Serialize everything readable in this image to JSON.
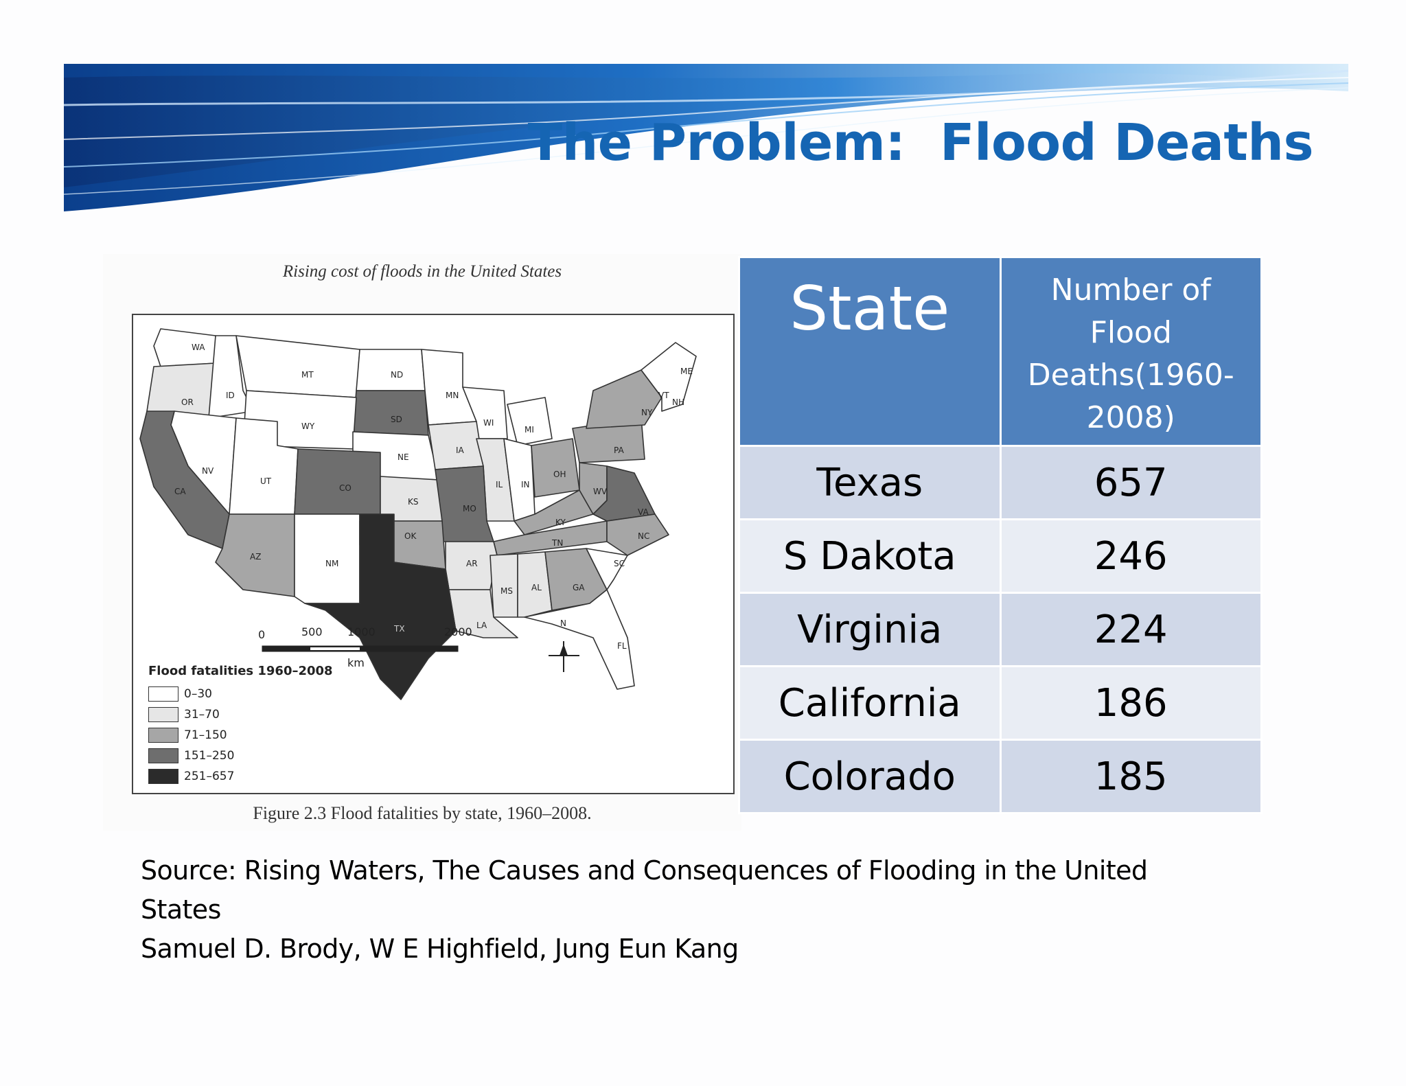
{
  "slide": {
    "title": "The Problem:  Flood Deaths"
  },
  "map": {
    "caption_top": "Rising cost of floods in the United States",
    "caption_bottom": "Figure 2.3 Flood fatalities by state, 1960–2008.",
    "legend_title": "Flood fatalities 1960–2008",
    "legend": [
      {
        "label": "0–30",
        "color": "#ffffff"
      },
      {
        "label": "31–70",
        "color": "#e6e6e6"
      },
      {
        "label": "71–150",
        "color": "#a6a6a6"
      },
      {
        "label": "151–250",
        "color": "#6e6e6e"
      },
      {
        "label": "251–657",
        "color": "#2b2b2b"
      }
    ],
    "scale": {
      "ticks": [
        "0",
        "500",
        "1000",
        "2000"
      ],
      "unit": "km"
    },
    "north_label": "N",
    "state_labels": [
      "WA",
      "OR",
      "ID",
      "MT",
      "ND",
      "MN",
      "WI",
      "MI",
      "SD",
      "WY",
      "NE",
      "IA",
      "IL",
      "IN",
      "OH",
      "PA",
      "NY",
      "VT",
      "NH",
      "ME",
      "NV",
      "UT",
      "CO",
      "KS",
      "MO",
      "KY",
      "WV",
      "VA",
      "CA",
      "AZ",
      "NM",
      "OK",
      "AR",
      "TN",
      "NC",
      "SC",
      "MS",
      "AL",
      "GA",
      "LA",
      "FL",
      "TX"
    ]
  },
  "table": {
    "header_state": "State",
    "header_deaths": "Number of Flood Deaths(1960-2008)",
    "rows": [
      {
        "state": "Texas",
        "deaths": "657"
      },
      {
        "state": "S Dakota",
        "deaths": "246"
      },
      {
        "state": "Virginia",
        "deaths": "224"
      },
      {
        "state": "California",
        "deaths": "186"
      },
      {
        "state": "Colorado",
        "deaths": "185"
      }
    ]
  },
  "source": {
    "line1": "Source:  Rising Waters, The Causes and Consequences of Flooding in the United States",
    "line2": "Samuel D. Brody, W E Highfield, Jung Eun Kang"
  }
}
